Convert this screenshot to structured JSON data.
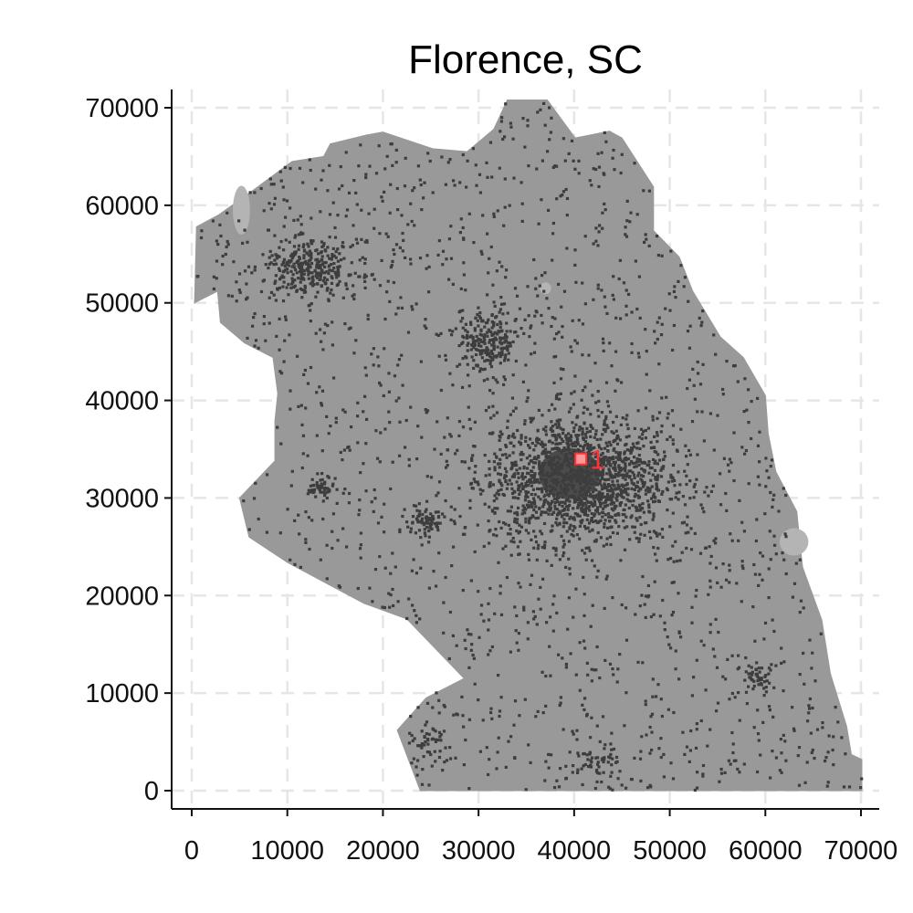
{
  "title": "Florence, SC",
  "chart_data": {
    "type": "map",
    "title": "Florence, SC",
    "xlim": [
      -2000,
      72000
    ],
    "ylim": [
      -2000,
      72000
    ],
    "x_ticks": [
      0,
      10000,
      20000,
      30000,
      40000,
      50000,
      60000,
      70000
    ],
    "y_ticks": [
      0,
      10000,
      20000,
      30000,
      40000,
      50000,
      60000,
      70000
    ],
    "x_tick_labels": [
      "0",
      "10000",
      "20000",
      "30000",
      "40000",
      "50000",
      "60000",
      "70000"
    ],
    "y_tick_labels": [
      "0",
      "10000",
      "20000",
      "30000",
      "40000",
      "50000",
      "60000",
      "70000"
    ],
    "grid": true,
    "region_boundary": [
      [
        23900,
        0
      ],
      [
        70100,
        0
      ],
      [
        70100,
        3200
      ],
      [
        69000,
        3700
      ],
      [
        68500,
        6600
      ],
      [
        66800,
        12000
      ],
      [
        65900,
        17500
      ],
      [
        63900,
        22900
      ],
      [
        63600,
        25400
      ],
      [
        63300,
        28600
      ],
      [
        61100,
        32700
      ],
      [
        60300,
        36600
      ],
      [
        60000,
        40500
      ],
      [
        57700,
        44400
      ],
      [
        55300,
        46500
      ],
      [
        52400,
        51200
      ],
      [
        51000,
        54700
      ],
      [
        48300,
        57400
      ],
      [
        48300,
        61900
      ],
      [
        45000,
        66900
      ],
      [
        43700,
        67600
      ],
      [
        40100,
        66900
      ],
      [
        37200,
        70800
      ],
      [
        33000,
        70800
      ],
      [
        31600,
        67800
      ],
      [
        28800,
        65500
      ],
      [
        25200,
        65800
      ],
      [
        20000,
        67500
      ],
      [
        18300,
        67200
      ],
      [
        14500,
        66300
      ],
      [
        13800,
        65000
      ],
      [
        10500,
        64500
      ],
      [
        6500,
        61600
      ],
      [
        2800,
        59000
      ],
      [
        500,
        57800
      ],
      [
        300,
        50000
      ],
      [
        2700,
        51200
      ],
      [
        3000,
        48000
      ],
      [
        5500,
        45900
      ],
      [
        8500,
        44400
      ],
      [
        9000,
        40700
      ],
      [
        8700,
        37900
      ],
      [
        8700,
        33800
      ],
      [
        5000,
        30000
      ],
      [
        6000,
        26000
      ],
      [
        10000,
        23400
      ],
      [
        14000,
        21300
      ],
      [
        18000,
        19200
      ],
      [
        22500,
        17600
      ],
      [
        28500,
        11500
      ],
      [
        24500,
        9500
      ],
      [
        21500,
        6200
      ],
      [
        23900,
        0
      ]
    ],
    "clusters": [
      {
        "x": 40500,
        "y": 32000,
        "rx": 8500,
        "ry": 6000,
        "points": 1500
      },
      {
        "x": 12500,
        "y": 53500,
        "rx": 4500,
        "ry": 2500,
        "points": 300
      },
      {
        "x": 31000,
        "y": 46000,
        "rx": 3000,
        "ry": 3000,
        "points": 220
      },
      {
        "x": 24500,
        "y": 27500,
        "rx": 1800,
        "ry": 1500,
        "points": 70
      },
      {
        "x": 13500,
        "y": 31000,
        "rx": 1200,
        "ry": 1000,
        "points": 45
      },
      {
        "x": 59000,
        "y": 11500,
        "rx": 1500,
        "ry": 1500,
        "points": 45
      },
      {
        "x": 42500,
        "y": 3000,
        "rx": 2000,
        "ry": 1200,
        "points": 40
      },
      {
        "x": 25000,
        "y": 5000,
        "rx": 1500,
        "ry": 1500,
        "points": 40
      }
    ],
    "scatter_points": 2600,
    "marker": {
      "x": 40700,
      "y": 34000,
      "label": "1"
    },
    "colors": {
      "region_fill": "#999999",
      "region_light": "#b4b4b4",
      "dots": "#3d3d3d",
      "marker": "#ff3333",
      "marker_fill": "#ff9999"
    }
  }
}
